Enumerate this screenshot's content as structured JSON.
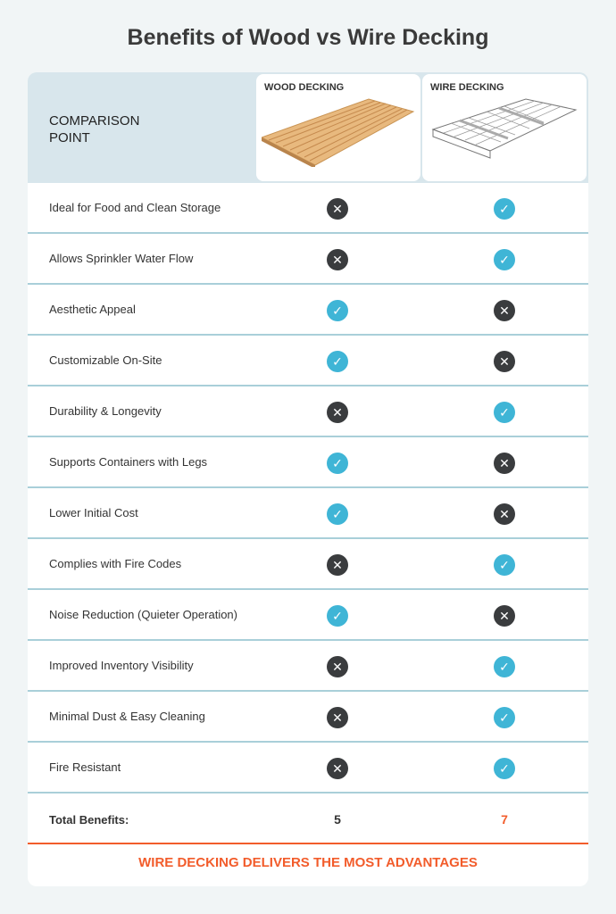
{
  "title": "Benefits of Wood vs Wire Decking",
  "header": {
    "comparison_label": "COMPARISON POINT",
    "wood_label": "WOOD DECKING",
    "wire_label": "WIRE DECKING"
  },
  "rows": [
    {
      "label": "Ideal for Food and Clean Storage",
      "wood": false,
      "wire": true
    },
    {
      "label": "Allows Sprinkler Water Flow",
      "wood": false,
      "wire": true
    },
    {
      "label": "Aesthetic Appeal",
      "wood": true,
      "wire": false
    },
    {
      "label": "Customizable On-Site",
      "wood": true,
      "wire": false
    },
    {
      "label": "Durability & Longevity",
      "wood": false,
      "wire": true
    },
    {
      "label": "Supports Containers with Legs",
      "wood": true,
      "wire": false
    },
    {
      "label": "Lower Initial Cost",
      "wood": true,
      "wire": false
    },
    {
      "label": "Complies with Fire Codes",
      "wood": false,
      "wire": true
    },
    {
      "label": "Noise Reduction (Quieter Operation)",
      "wood": true,
      "wire": false
    },
    {
      "label": "Improved Inventory Visibility",
      "wood": false,
      "wire": true
    },
    {
      "label": "Minimal Dust & Easy Cleaning",
      "wood": false,
      "wire": true
    },
    {
      "label": "Fire Resistant",
      "wood": false,
      "wire": true
    }
  ],
  "total": {
    "label": "Total Benefits:",
    "wood": "5",
    "wire": "7"
  },
  "footer": "WIRE DECKING DELIVERS THE MOST ADVANTAGES",
  "colors": {
    "check": "#3fb5d6",
    "cross": "#3a3c3e",
    "accent": "#f25c2b",
    "header_bg": "#d8e6ec",
    "divider": "#a9cfd9"
  }
}
